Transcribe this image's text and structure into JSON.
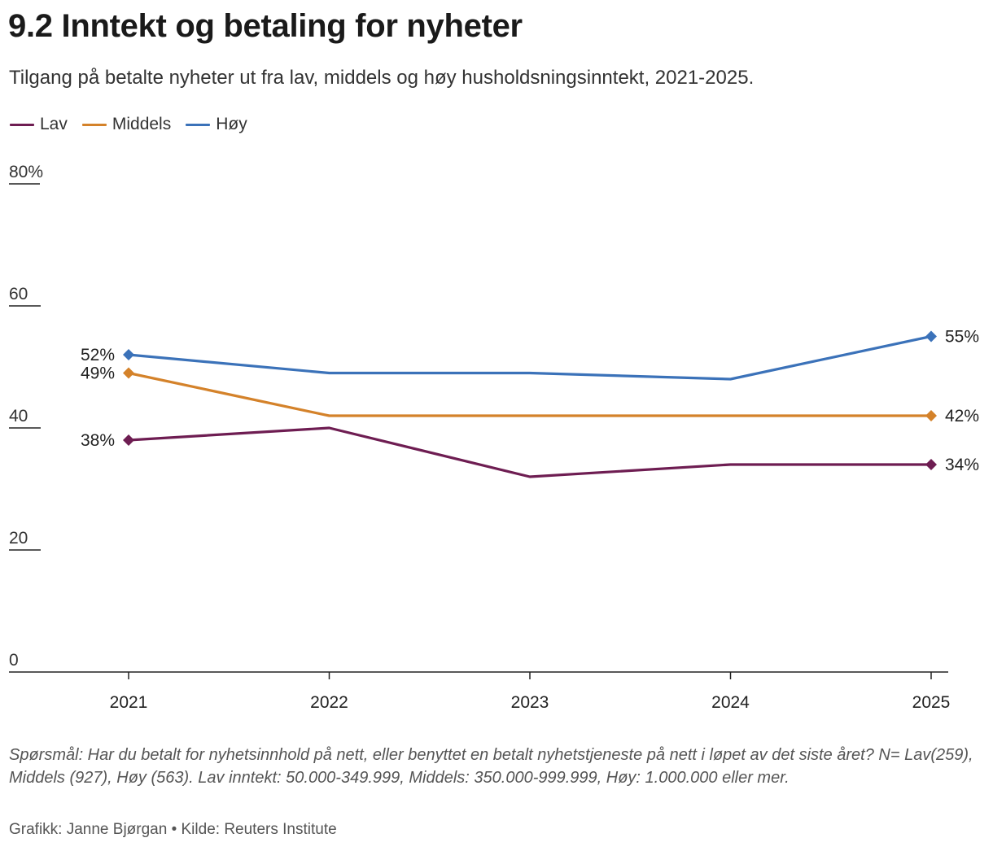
{
  "title": "9.2 Inntekt og betaling for nyheter",
  "subtitle": "Tilgang på betalte nyheter ut fra lav, middels og høy husholdsningsinntekt, 2021-2025.",
  "legend": [
    {
      "label": "Lav",
      "color": "#6e1d52"
    },
    {
      "label": "Middels",
      "color": "#d4822a"
    },
    {
      "label": "Høy",
      "color": "#3b72b9"
    }
  ],
  "chart_data": {
    "type": "line",
    "title": "9.2 Inntekt og betaling for nyheter",
    "subtitle": "Tilgang på betalte nyheter ut fra lav, middels og høy husholdsningsinntekt, 2021-2025.",
    "x": [
      "2021",
      "2022",
      "2023",
      "2024",
      "2025"
    ],
    "series": [
      {
        "name": "Lav",
        "color": "#6e1d52",
        "values": [
          38,
          40,
          32,
          34,
          34
        ]
      },
      {
        "name": "Middels",
        "color": "#d4822a",
        "values": [
          49,
          42,
          42,
          42,
          42
        ]
      },
      {
        "name": "Høy",
        "color": "#3b72b9",
        "values": [
          52,
          49,
          49,
          48,
          55
        ]
      }
    ],
    "start_labels": [
      "38%",
      "49%",
      "52%"
    ],
    "end_labels": [
      "34%",
      "42%",
      "55%"
    ],
    "y_ticks": [
      "0",
      "20",
      "40",
      "60",
      "80%"
    ],
    "y_tick_values": [
      0,
      20,
      40,
      60,
      80
    ],
    "ylim": [
      0,
      80
    ],
    "xlabel": "",
    "ylabel": "",
    "grid": false,
    "legend_position": "top-left"
  },
  "note": "Spørsmål: Har du betalt for nyhetsinnhold på nett, eller benyttet en betalt nyhetstjeneste på nett i løpet av det siste året? N= Lav(259), Middels (927), Høy (563). Lav inntekt: 50.000-349.999, Middels: 350.000-999.999, Høy: 1.000.000 eller mer.",
  "credit": "Grafikk: Janne Bjørgan • Kilde: Reuters Institute"
}
